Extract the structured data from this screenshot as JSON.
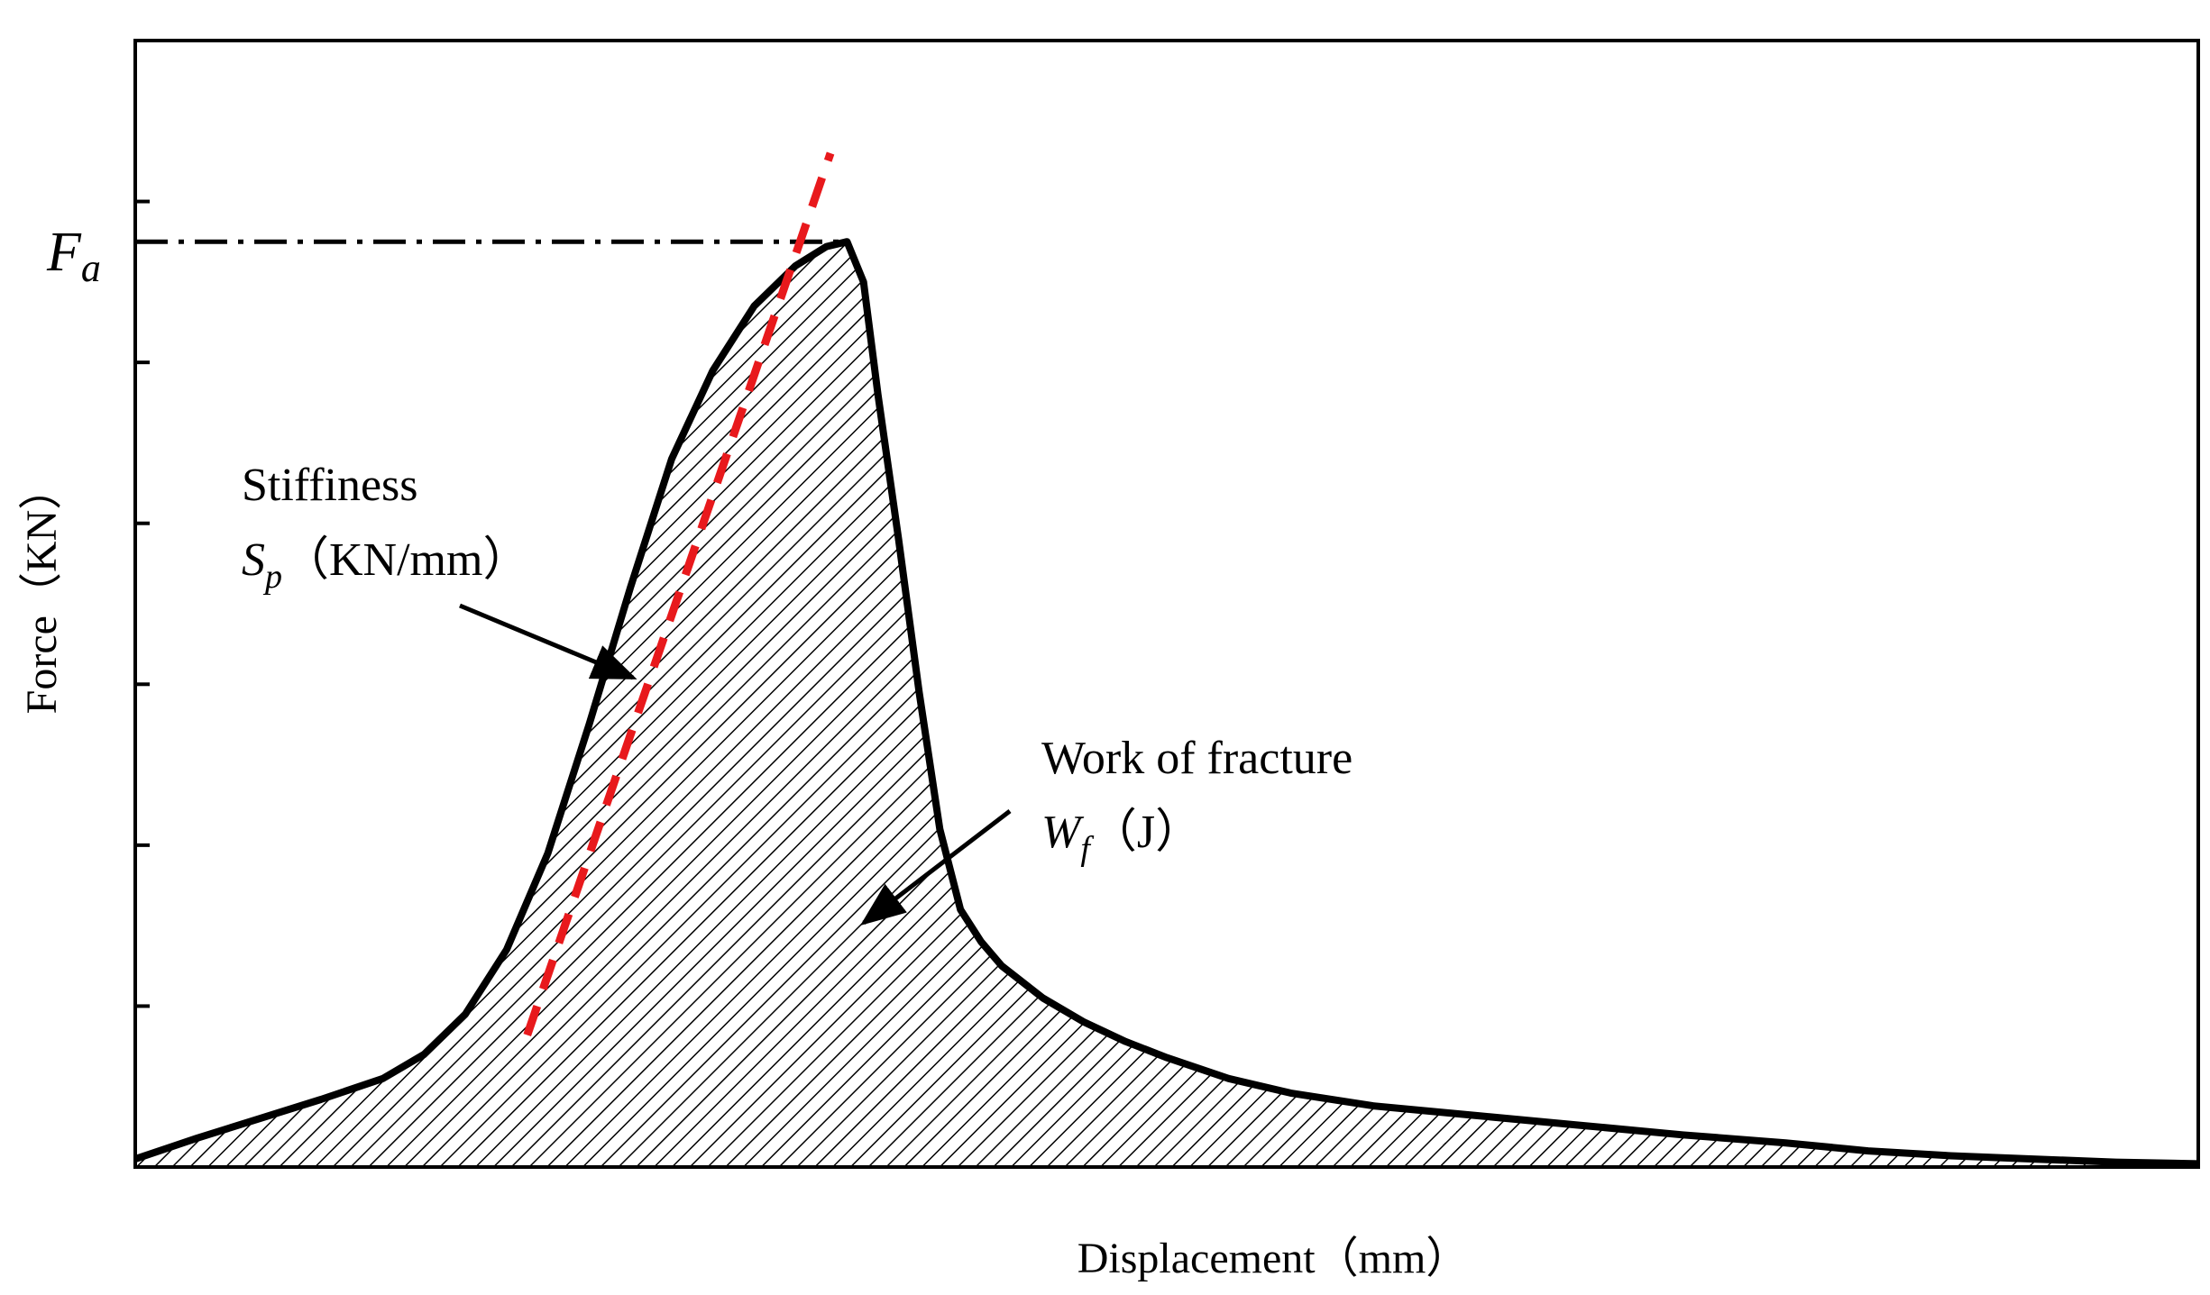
{
  "chart_data": {
    "type": "area",
    "xlabel": "Displacement（mm）",
    "ylabel": "Force（KN）",
    "peak_label": "F",
    "peak_label_sub": "a",
    "annotations": {
      "stiffness_title": "Stiffiness",
      "stiffness_symbol": "S",
      "stiffness_symbol_sub": "p",
      "stiffness_unit": "（KN/mm）",
      "work_title": "Work of fracture",
      "work_symbol": "W",
      "work_symbol_sub": "f",
      "work_unit": "（J）"
    },
    "xlim": [
      0,
      100
    ],
    "ylim": [
      0,
      7
    ],
    "y_tick_count": 7,
    "peak": {
      "x": 34.5,
      "y": 5.75
    },
    "curve": {
      "x": [
        0,
        3,
        6,
        9,
        12,
        14,
        16,
        18,
        20,
        22,
        24,
        26,
        28,
        30,
        32,
        33.5,
        34.5,
        35.3,
        36,
        37,
        38,
        39,
        40,
        41,
        42,
        44,
        46,
        48,
        50,
        53,
        56,
        60,
        65,
        70,
        75,
        80,
        84,
        88,
        92,
        96,
        100
      ],
      "y": [
        0.05,
        0.18,
        0.3,
        0.42,
        0.55,
        0.7,
        0.95,
        1.35,
        1.95,
        2.75,
        3.6,
        4.4,
        4.95,
        5.35,
        5.6,
        5.72,
        5.75,
        5.5,
        4.8,
        3.9,
        2.95,
        2.1,
        1.6,
        1.4,
        1.25,
        1.05,
        0.9,
        0.78,
        0.68,
        0.55,
        0.46,
        0.38,
        0.32,
        0.26,
        0.2,
        0.15,
        0.1,
        0.07,
        0.05,
        0.03,
        0.02
      ]
    },
    "stiffness_line": {
      "x": [
        19,
        33.7
      ],
      "y": [
        0.82,
        6.3
      ]
    },
    "colors": {
      "curve": "#000000",
      "stiffness_line": "#e8191c",
      "hatch": "#000000"
    },
    "grid": false,
    "legend": "none"
  }
}
